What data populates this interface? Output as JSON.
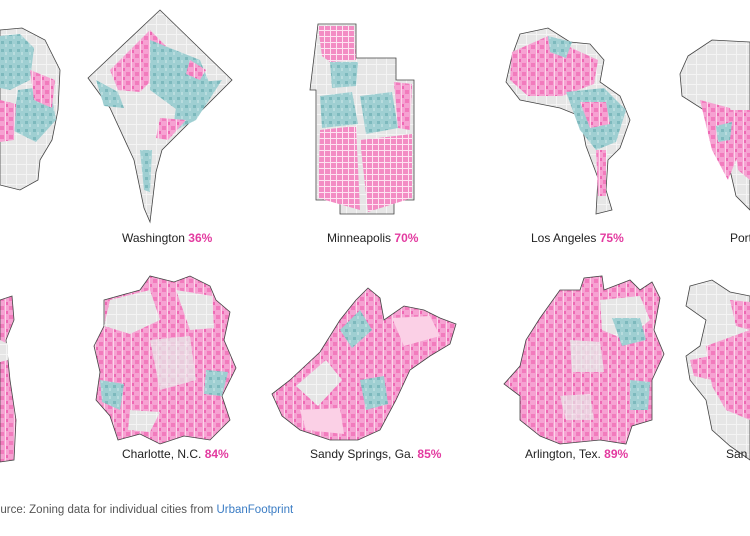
{
  "cities": [
    {
      "name": "Washington",
      "pct": "36%"
    },
    {
      "name": "Minneapolis",
      "pct": "70%"
    },
    {
      "name": "Los Angeles",
      "pct": "75%"
    },
    {
      "name": "Port",
      "pct": ""
    },
    {
      "name": "Charlotte, N.C.",
      "pct": "84%"
    },
    {
      "name": "Sandy Springs, Ga.",
      "pct": "85%"
    },
    {
      "name": "Arlington, Tex.",
      "pct": "89%"
    },
    {
      "name": "San",
      "pct": ""
    }
  ],
  "source": {
    "prefix": "ource: Zoning data for individual cities from ",
    "link": "UrbanFootprint"
  },
  "colors": {
    "single_family": "#f27bbd",
    "other_residential": "#8ec5c9",
    "nonresidential": "#e2e2e2",
    "pct_text": "#e33ba0"
  }
}
